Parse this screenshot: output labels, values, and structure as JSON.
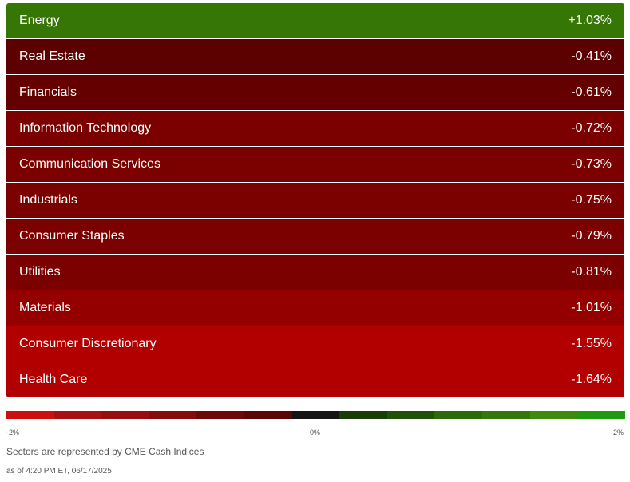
{
  "sectors": [
    {
      "name": "Energy",
      "change": "+1.03%",
      "color": "#357604"
    },
    {
      "name": "Real Estate",
      "change": "-0.41%",
      "color": "#5c0000"
    },
    {
      "name": "Financials",
      "change": "-0.61%",
      "color": "#640000"
    },
    {
      "name": "Information Technology",
      "change": "-0.72%",
      "color": "#7b0000"
    },
    {
      "name": "Communication Services",
      "change": "-0.73%",
      "color": "#7b0000"
    },
    {
      "name": "Industrials",
      "change": "-0.75%",
      "color": "#7b0000"
    },
    {
      "name": "Consumer Staples",
      "change": "-0.79%",
      "color": "#7b0000"
    },
    {
      "name": "Utilities",
      "change": "-0.81%",
      "color": "#7b0000"
    },
    {
      "name": "Materials",
      "change": "-1.01%",
      "color": "#940000"
    },
    {
      "name": "Consumer Discretionary",
      "change": "-1.55%",
      "color": "#b20000"
    },
    {
      "name": "Health Care",
      "change": "-1.64%",
      "color": "#b20000"
    }
  ],
  "scale": {
    "min_label": "-2%",
    "mid_label": "0%",
    "max_label": "2%",
    "colors": [
      "#cc0f0f",
      "#a80f0f",
      "#980d0d",
      "#850a0a",
      "#6e0707",
      "#5c0505",
      "#141414",
      "#183d07",
      "#1f5208",
      "#2a6a09",
      "#33780b",
      "#3f8a0b",
      "#1f9a10"
    ]
  },
  "footer": {
    "note": "Sectors are represented by CME Cash Indices",
    "timestamp": "as of 4:20 PM ET, 06/17/2025"
  }
}
